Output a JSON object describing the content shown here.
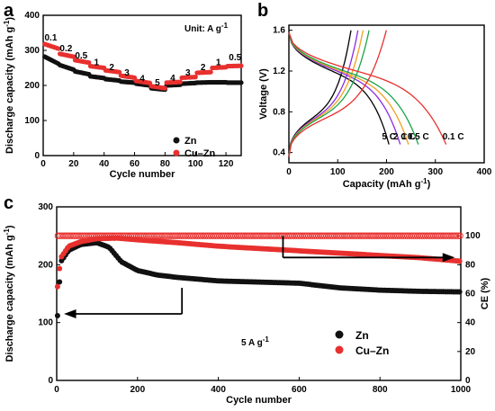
{
  "chart_data": [
    {
      "id": "a",
      "type": "scatter",
      "panel_label": "a",
      "xlabel": "Cycle number",
      "ylabel": "Discharge capacity (mAh g",
      "ylabel_sup": "-1",
      "ylabel_end": ")",
      "xlim": [
        0,
        130
      ],
      "ylim": [
        0,
        400
      ],
      "xticks": [
        "0",
        "20",
        "40",
        "60",
        "80",
        "100",
        "120"
      ],
      "yticks": [
        "0",
        "100",
        "200",
        "300",
        "400"
      ],
      "unit_note": "Unit: A g",
      "unit_note_sup": "-1",
      "legend": [
        "Zn",
        "Cu–Zn"
      ],
      "rate_labels": [
        {
          "text": "0.1",
          "x": 5,
          "y": 328
        },
        {
          "text": "0.2",
          "x": 15,
          "y": 298
        },
        {
          "text": "0.5",
          "x": 25,
          "y": 277
        },
        {
          "text": "1",
          "x": 35,
          "y": 258
        },
        {
          "text": "2",
          "x": 45,
          "y": 243
        },
        {
          "text": "3",
          "x": 55,
          "y": 228
        },
        {
          "text": "4",
          "x": 65,
          "y": 212
        },
        {
          "text": "5",
          "x": 75,
          "y": 200
        },
        {
          "text": "4",
          "x": 85,
          "y": 213
        },
        {
          "text": "3",
          "x": 95,
          "y": 228
        },
        {
          "text": "2",
          "x": 105,
          "y": 243
        },
        {
          "text": "1",
          "x": 115,
          "y": 258
        },
        {
          "text": "0.5",
          "x": 126,
          "y": 272
        }
      ],
      "series": [
        {
          "name": "Zn",
          "color": "#111111",
          "segments": [
            [
              1,
              10,
              282,
              262
            ],
            [
              11,
              20,
              258,
              245
            ],
            [
              21,
              30,
              240,
              232
            ],
            [
              31,
              40,
              226,
              221
            ],
            [
              41,
              50,
              218,
              214
            ],
            [
              51,
              60,
              211,
              208
            ],
            [
              61,
              70,
              205,
              200
            ],
            [
              71,
              80,
              192,
              188
            ],
            [
              81,
              90,
              200,
              202
            ],
            [
              91,
              100,
              205,
              207
            ],
            [
              101,
              110,
              208,
              209
            ],
            [
              111,
              120,
              209,
              209
            ],
            [
              121,
              130,
              208,
              208
            ]
          ]
        },
        {
          "name": "Cu–Zn",
          "color": "#e8302e",
          "segments": [
            [
              1,
              10,
              318,
              305
            ],
            [
              11,
              20,
              290,
              282
            ],
            [
              21,
              30,
              272,
              265
            ],
            [
              31,
              40,
              255,
              250
            ],
            [
              41,
              50,
              243,
              238
            ],
            [
              51,
              60,
              228,
              222
            ],
            [
              61,
              70,
              213,
              207
            ],
            [
              71,
              80,
              198,
              192
            ],
            [
              81,
              90,
              208,
              210
            ],
            [
              91,
              100,
              222,
              224
            ],
            [
              101,
              110,
              236,
              238
            ],
            [
              111,
              120,
              250,
              252
            ],
            [
              121,
              130,
              255,
              256
            ]
          ]
        }
      ]
    },
    {
      "id": "b",
      "type": "line",
      "panel_label": "b",
      "xlabel": "Capacity (mAh g",
      "xlabel_sup": "-1",
      "xlabel_end": ")",
      "ylabel": "Voltage (V)",
      "xlim": [
        0,
        400
      ],
      "ylim": [
        0.3,
        1.65
      ],
      "xticks": [
        "0",
        "100",
        "200",
        "300",
        "400"
      ],
      "yticks": [
        "0.4",
        "0.8",
        "1.2",
        "1.6"
      ],
      "curve_labels": [
        "5 C",
        "2 C",
        "1 C",
        "0.5 C",
        "0.1 C"
      ],
      "series": [
        {
          "name": "5 C",
          "color": "#000000",
          "cap": 205
        },
        {
          "name": "2 C",
          "color": "#8a2be2",
          "cap": 228
        },
        {
          "name": "1 C",
          "color": "#f0a020",
          "cap": 245
        },
        {
          "name": "0.5 C",
          "color": "#1aa64a",
          "cap": 265
        },
        {
          "name": "0.1 C",
          "color": "#e8302e",
          "cap": 322
        }
      ]
    },
    {
      "id": "c",
      "type": "scatter",
      "panel_label": "c",
      "xlabel": "Cycle number",
      "ylabel": "Discharge capacity (mAh g",
      "ylabel_sup": "-1",
      "ylabel_end": ")",
      "y2label": "CE (%)",
      "xlim": [
        0,
        1000
      ],
      "ylim": [
        0,
        300
      ],
      "y2lim": [
        0,
        120
      ],
      "xticks": [
        "0",
        "200",
        "400",
        "600",
        "800",
        "1000"
      ],
      "yticks": [
        "0",
        "100",
        "200",
        "300"
      ],
      "y2ticks": [
        "0",
        "20",
        "40",
        "60",
        "80",
        "100"
      ],
      "rate_note": "5 A g",
      "rate_note_sup": "-1",
      "legend": [
        "Zn",
        "Cu–Zn"
      ],
      "series": [
        {
          "name": "Zn",
          "color": "#111111",
          "points": [
            [
              2,
              112
            ],
            [
              10,
              205
            ],
            [
              30,
              225
            ],
            [
              60,
              235
            ],
            [
              100,
              238
            ],
            [
              130,
              230
            ],
            [
              160,
              205
            ],
            [
              200,
              190
            ],
            [
              250,
              182
            ],
            [
              300,
              178
            ],
            [
              350,
              175
            ],
            [
              400,
              172
            ],
            [
              500,
              170
            ],
            [
              600,
              168
            ],
            [
              700,
              160
            ],
            [
              800,
              156
            ],
            [
              900,
              154
            ],
            [
              1000,
              153
            ]
          ]
        },
        {
          "name": "Cu–Zn",
          "color": "#e8302e",
          "points": [
            [
              2,
              162
            ],
            [
              10,
              212
            ],
            [
              30,
              232
            ],
            [
              60,
              240
            ],
            [
              100,
              245
            ],
            [
              150,
              246
            ],
            [
              200,
              243
            ],
            [
              300,
              238
            ],
            [
              400,
              232
            ],
            [
              500,
              228
            ],
            [
              600,
              224
            ],
            [
              700,
              220
            ],
            [
              800,
              216
            ],
            [
              900,
              212
            ],
            [
              1000,
              206
            ]
          ]
        },
        {
          "name": "CE",
          "color": "#e8302e",
          "ce_value": 100
        }
      ]
    }
  ]
}
